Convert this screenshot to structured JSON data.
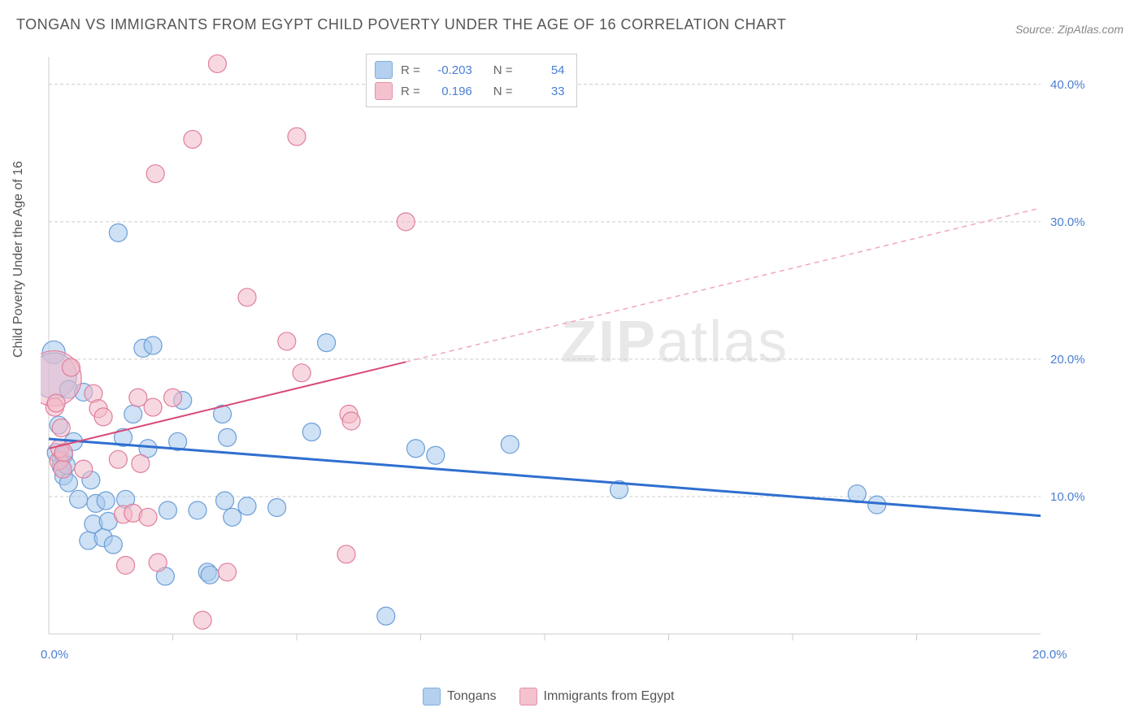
{
  "chart": {
    "title": "TONGAN VS IMMIGRANTS FROM EGYPT CHILD POVERTY UNDER THE AGE OF 16 CORRELATION CHART",
    "source": "Source: ZipAtlas.com",
    "y_label": "Child Poverty Under the Age of 16",
    "type": "scatter",
    "background_color": "#ffffff",
    "grid_color": "#cccccc",
    "axis_color": "#cccccc",
    "tick_label_color": "#4a7fd3",
    "x_axis": {
      "min": 0,
      "max": 20,
      "ticks": [
        0,
        20
      ],
      "tick_labels": [
        "0.0%",
        "20.0%"
      ],
      "minor_ticks": [
        2.5,
        5.0,
        7.5,
        10.0,
        12.5,
        15.0,
        17.5
      ]
    },
    "y_axis": {
      "min": 0,
      "max": 42,
      "ticks": [
        10,
        20,
        30,
        40
      ],
      "tick_labels": [
        "10.0%",
        "20.0%",
        "30.0%",
        "40.0%"
      ]
    },
    "series": {
      "tongans": {
        "label": "Tongans",
        "fill": "#a8c8ec",
        "stroke": "#6b9fd8",
        "fill_opacity": 0.55,
        "marker_radius": 11,
        "line_color": "#2f6fd0",
        "line_width": 3,
        "trend_start": {
          "x": 0,
          "y": 14.2
        },
        "trend_end": {
          "x": 20,
          "y": 8.6
        },
        "R": "-0.203",
        "N": "54",
        "points": [
          [
            0.1,
            20.5,
            14
          ],
          [
            0.1,
            18.8,
            28
          ],
          [
            0.15,
            13.2,
            11
          ],
          [
            0.2,
            15.2,
            11
          ],
          [
            0.25,
            12.2,
            11
          ],
          [
            0.25,
            12.7,
            11
          ],
          [
            0.3,
            11.5,
            11
          ],
          [
            0.3,
            13.0,
            11
          ],
          [
            0.35,
            12.3,
            11
          ],
          [
            0.4,
            17.8,
            11
          ],
          [
            0.4,
            11.0,
            11
          ],
          [
            0.5,
            14.0,
            11
          ],
          [
            0.6,
            9.8,
            11
          ],
          [
            0.7,
            17.6,
            11
          ],
          [
            0.8,
            6.8,
            11
          ],
          [
            0.85,
            11.2,
            11
          ],
          [
            0.9,
            8.0,
            11
          ],
          [
            0.95,
            9.5,
            11
          ],
          [
            1.1,
            7.0,
            11
          ],
          [
            1.15,
            9.7,
            11
          ],
          [
            1.2,
            8.2,
            11
          ],
          [
            1.3,
            6.5,
            11
          ],
          [
            1.4,
            29.2,
            11
          ],
          [
            1.5,
            14.3,
            11
          ],
          [
            1.55,
            9.8,
            11
          ],
          [
            1.7,
            16.0,
            11
          ],
          [
            1.9,
            20.8,
            11
          ],
          [
            2.0,
            13.5,
            11
          ],
          [
            2.1,
            21.0,
            11
          ],
          [
            2.35,
            4.2,
            11
          ],
          [
            2.4,
            9.0,
            11
          ],
          [
            2.6,
            14.0,
            11
          ],
          [
            2.7,
            17.0,
            11
          ],
          [
            3.0,
            9.0,
            11
          ],
          [
            3.2,
            4.5,
            11
          ],
          [
            3.25,
            4.3,
            11
          ],
          [
            3.5,
            16.0,
            11
          ],
          [
            3.55,
            9.7,
            11
          ],
          [
            3.6,
            14.3,
            11
          ],
          [
            3.7,
            8.5,
            11
          ],
          [
            4.0,
            9.3,
            11
          ],
          [
            4.6,
            9.2,
            11
          ],
          [
            5.3,
            14.7,
            11
          ],
          [
            5.6,
            21.2,
            11
          ],
          [
            6.8,
            1.3,
            11
          ],
          [
            7.4,
            13.5,
            11
          ],
          [
            7.8,
            13.0,
            11
          ],
          [
            9.3,
            13.8,
            11
          ],
          [
            11.5,
            10.5,
            11
          ],
          [
            16.3,
            10.2,
            11
          ],
          [
            16.7,
            9.4,
            11
          ]
        ]
      },
      "egypt": {
        "label": "Immigrants from Egypt",
        "fill": "#f2b8c6",
        "stroke": "#e07e9b",
        "fill_opacity": 0.55,
        "marker_radius": 11,
        "line_color": "#d84a78",
        "line_width": 2,
        "dashed_color": "#f0a8ba",
        "trend_start": {
          "x": 0,
          "y": 13.5
        },
        "trend_solid_end": {
          "x": 7.2,
          "y": 19.8
        },
        "trend_end": {
          "x": 20,
          "y": 31.0
        },
        "R": "0.196",
        "N": "33",
        "points": [
          [
            0.1,
            18.6,
            34
          ],
          [
            0.12,
            16.5,
            11
          ],
          [
            0.15,
            16.8,
            11
          ],
          [
            0.2,
            12.6,
            11
          ],
          [
            0.22,
            13.5,
            11
          ],
          [
            0.25,
            15.0,
            11
          ],
          [
            0.28,
            12.0,
            11
          ],
          [
            0.3,
            13.2,
            11
          ],
          [
            0.45,
            19.4,
            11
          ],
          [
            0.7,
            12.0,
            11
          ],
          [
            0.9,
            17.5,
            11
          ],
          [
            1.0,
            16.4,
            11
          ],
          [
            1.1,
            15.8,
            11
          ],
          [
            1.4,
            12.7,
            11
          ],
          [
            1.5,
            8.7,
            11
          ],
          [
            1.55,
            5.0,
            11
          ],
          [
            1.7,
            8.8,
            11
          ],
          [
            1.8,
            17.2,
            11
          ],
          [
            1.85,
            12.4,
            11
          ],
          [
            2.0,
            8.5,
            11
          ],
          [
            2.1,
            16.5,
            11
          ],
          [
            2.15,
            33.5,
            11
          ],
          [
            2.2,
            5.2,
            11
          ],
          [
            2.5,
            17.2,
            11
          ],
          [
            2.9,
            36.0,
            11
          ],
          [
            3.1,
            1.0,
            11
          ],
          [
            3.4,
            41.5,
            11
          ],
          [
            3.6,
            4.5,
            11
          ],
          [
            4.0,
            24.5,
            11
          ],
          [
            4.8,
            21.3,
            11
          ],
          [
            5.0,
            36.2,
            11
          ],
          [
            5.1,
            19.0,
            11
          ],
          [
            6.0,
            5.8,
            11
          ],
          [
            6.05,
            16.0,
            11
          ],
          [
            6.1,
            15.5,
            11
          ],
          [
            7.2,
            30.0,
            11
          ]
        ]
      }
    },
    "watermark": "ZIPatlas",
    "legend": {
      "r_label": "R =",
      "n_label": "N ="
    }
  }
}
